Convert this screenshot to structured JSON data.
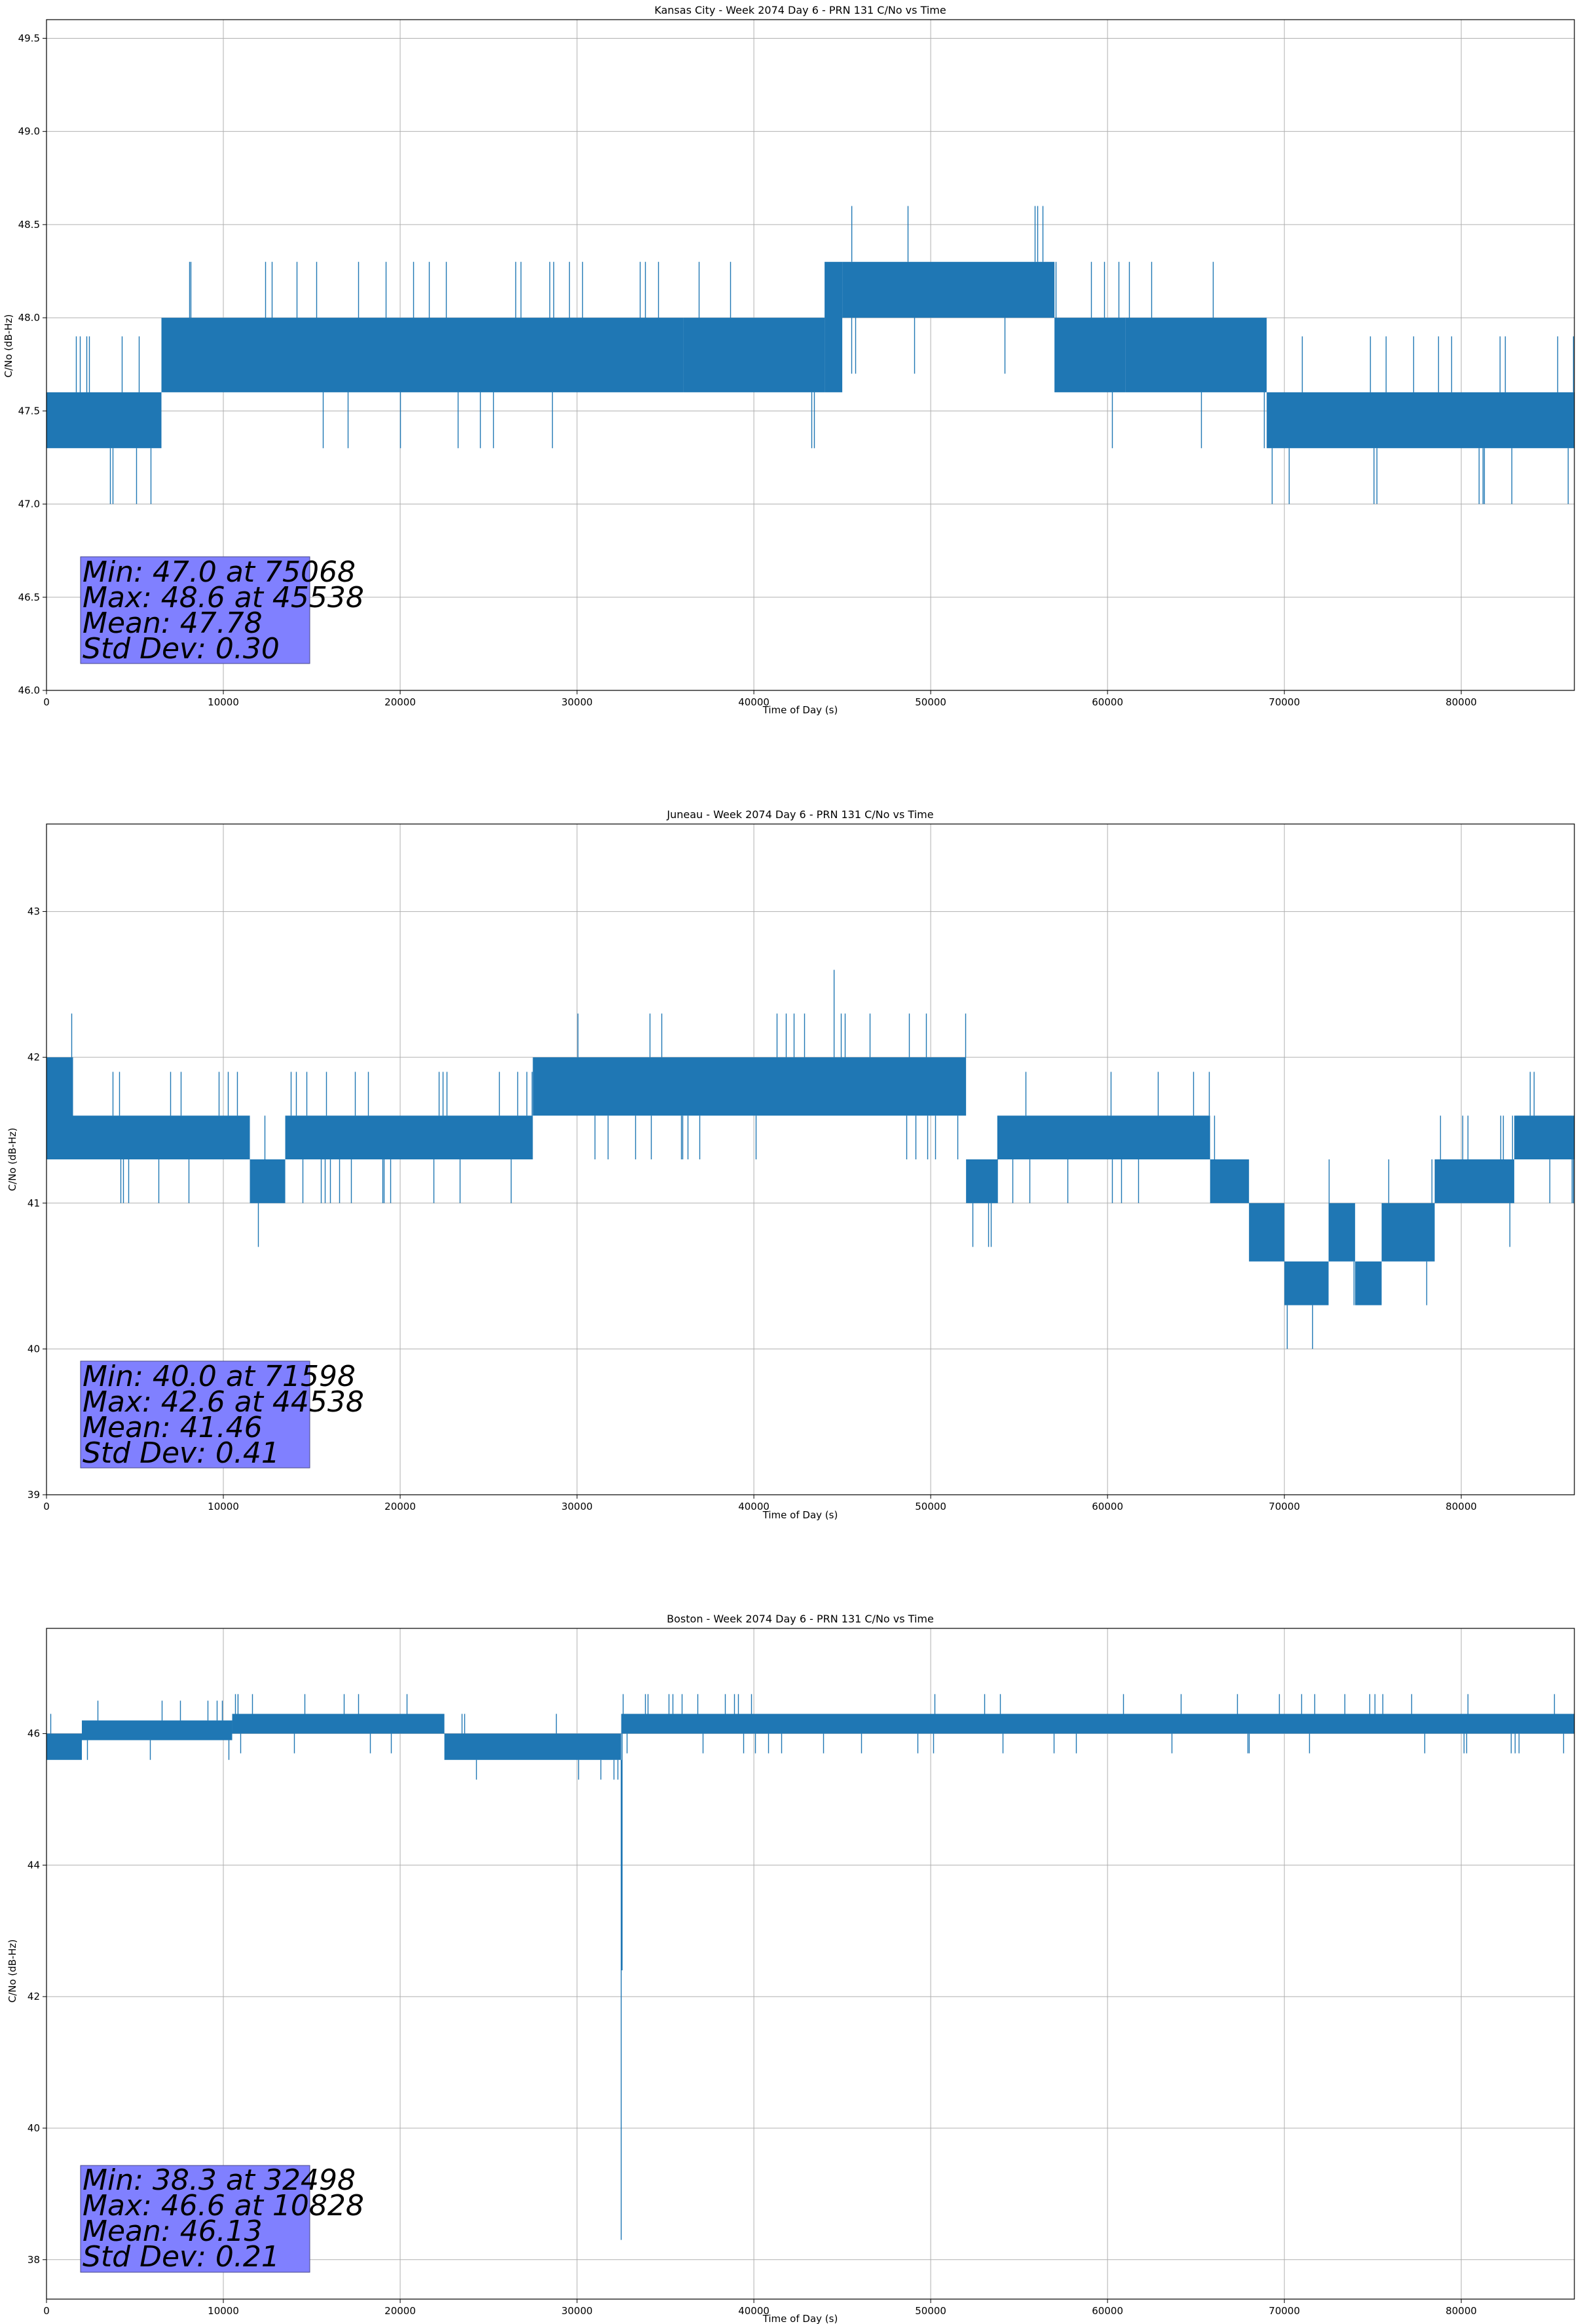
{
  "colors": {
    "series": "#1f77b4",
    "grid": "#b0b0b0",
    "stats_box": "#8080ff",
    "stats_border": "#4a4a8a",
    "axes": "#000000"
  },
  "chart_data": [
    {
      "type": "line",
      "title": "Kansas City - Week 2074 Day 6 - PRN 131 C/No vs Time",
      "xlabel": "Time of Day (s)",
      "ylabel": "C/No (dB-Hz)",
      "xlim": [
        0,
        86400
      ],
      "ylim": [
        46.0,
        49.6
      ],
      "xticks": [
        0,
        10000,
        20000,
        30000,
        40000,
        50000,
        60000,
        70000,
        80000
      ],
      "yticks": [
        46.0,
        46.5,
        47.0,
        47.5,
        48.0,
        48.5,
        49.0,
        49.5
      ],
      "ytick_labels": [
        "46.0",
        "46.5",
        "47.0",
        "47.5",
        "48.0",
        "48.5",
        "49.0",
        "49.5"
      ],
      "grid": true,
      "step": 0.3,
      "spike_prob": 0.07,
      "seed": 11,
      "band_segments": [
        {
          "x": [
            0,
            1000
          ],
          "low": 47.3,
          "high": 47.6
        },
        {
          "x": [
            1000,
            6500
          ],
          "low": 47.3,
          "high": 47.6
        },
        {
          "x": [
            6500,
            36000
          ],
          "low": 47.6,
          "high": 48.0
        },
        {
          "x": [
            36000,
            44000
          ],
          "low": 47.6,
          "high": 48.0
        },
        {
          "x": [
            44000,
            45000
          ],
          "low": 47.6,
          "high": 48.3
        },
        {
          "x": [
            45000,
            57000
          ],
          "low": 48.0,
          "high": 48.3
        },
        {
          "x": [
            57000,
            61000
          ],
          "low": 47.6,
          "high": 48.0
        },
        {
          "x": [
            61000,
            69000
          ],
          "low": 47.6,
          "high": 48.0
        },
        {
          "x": [
            69000,
            86400
          ],
          "low": 47.3,
          "high": 47.6
        }
      ],
      "extremes": [
        {
          "x": 45538,
          "y": 48.6
        },
        {
          "x": 75068,
          "y": 47.0
        }
      ],
      "stats": [
        "Min: 47.0 at 75068",
        "Max: 48.6 at 45538",
        "Mean: 47.78",
        "Std Dev: 0.30"
      ]
    },
    {
      "type": "line",
      "title": "Juneau - Week 2074 Day 6 - PRN 131 C/No vs Time",
      "xlabel": "Time of Day (s)",
      "ylabel": "C/No (dB-Hz)",
      "xlim": [
        0,
        86400
      ],
      "ylim": [
        39.0,
        43.6
      ],
      "xticks": [
        0,
        10000,
        20000,
        30000,
        40000,
        50000,
        60000,
        70000,
        80000
      ],
      "yticks": [
        39,
        40,
        41,
        42,
        43
      ],
      "ytick_labels": [
        "39",
        "40",
        "41",
        "42",
        "43"
      ],
      "grid": true,
      "step": 0.3,
      "spike_prob": 0.07,
      "seed": 23,
      "band_segments": [
        {
          "x": [
            0,
            1500
          ],
          "low": 41.3,
          "high": 42.0
        },
        {
          "x": [
            1500,
            11500
          ],
          "low": 41.3,
          "high": 41.6
        },
        {
          "x": [
            11500,
            13500
          ],
          "low": 41.0,
          "high": 41.3
        },
        {
          "x": [
            13500,
            27500
          ],
          "low": 41.3,
          "high": 41.6
        },
        {
          "x": [
            27500,
            52000
          ],
          "low": 41.6,
          "high": 42.0
        },
        {
          "x": [
            52000,
            53800
          ],
          "low": 41.0,
          "high": 41.3
        },
        {
          "x": [
            53800,
            65800
          ],
          "low": 41.3,
          "high": 41.6
        },
        {
          "x": [
            65800,
            68000
          ],
          "low": 41.0,
          "high": 41.3
        },
        {
          "x": [
            68000,
            70000
          ],
          "low": 40.6,
          "high": 41.0
        },
        {
          "x": [
            70000,
            72500
          ],
          "low": 40.3,
          "high": 40.6
        },
        {
          "x": [
            72500,
            74000
          ],
          "low": 40.6,
          "high": 41.0
        },
        {
          "x": [
            74000,
            75500
          ],
          "low": 40.3,
          "high": 40.6
        },
        {
          "x": [
            75500,
            78500
          ],
          "low": 40.6,
          "high": 41.0
        },
        {
          "x": [
            78500,
            83000
          ],
          "low": 41.0,
          "high": 41.3
        },
        {
          "x": [
            83000,
            86400
          ],
          "low": 41.3,
          "high": 41.6
        }
      ],
      "extremes": [
        {
          "x": 44538,
          "y": 42.6
        },
        {
          "x": 71598,
          "y": 40.0
        }
      ],
      "stats": [
        "Min: 40.0 at 71598",
        "Max: 42.6 at 44538",
        "Mean: 41.46",
        "Std Dev: 0.41"
      ]
    },
    {
      "type": "line",
      "title": "Boston - Week 2074 Day 6 - PRN 131 C/No vs Time",
      "xlabel": "Time of Day (s)",
      "ylabel": "C/No (dB-Hz)",
      "xlim": [
        0,
        86400
      ],
      "ylim": [
        37.4,
        47.6
      ],
      "xticks": [
        0,
        10000,
        20000,
        30000,
        40000,
        50000,
        60000,
        70000,
        80000
      ],
      "yticks": [
        38,
        40,
        42,
        44,
        46
      ],
      "ytick_labels": [
        "38",
        "40",
        "42",
        "44",
        "46"
      ],
      "grid": true,
      "step": 0.3,
      "spike_prob": 0.07,
      "seed": 37,
      "band_segments": [
        {
          "x": [
            0,
            2000
          ],
          "low": 45.6,
          "high": 46.0
        },
        {
          "x": [
            2000,
            10500
          ],
          "low": 45.9,
          "high": 46.2
        },
        {
          "x": [
            10500,
            22500
          ],
          "low": 46.0,
          "high": 46.3
        },
        {
          "x": [
            22500,
            32500
          ],
          "low": 45.6,
          "high": 46.0
        },
        {
          "x": [
            32500,
            86400
          ],
          "low": 46.0,
          "high": 46.3
        }
      ],
      "extremes": [
        {
          "x": 10828,
          "y": 46.6
        },
        {
          "x": 32498,
          "y": 38.3
        },
        {
          "x": 32550,
          "y": 42.4
        }
      ],
      "stats": [
        "Min: 38.3 at 32498",
        "Max: 46.6 at 10828",
        "Mean: 46.13",
        "Std Dev: 0.21"
      ]
    }
  ]
}
